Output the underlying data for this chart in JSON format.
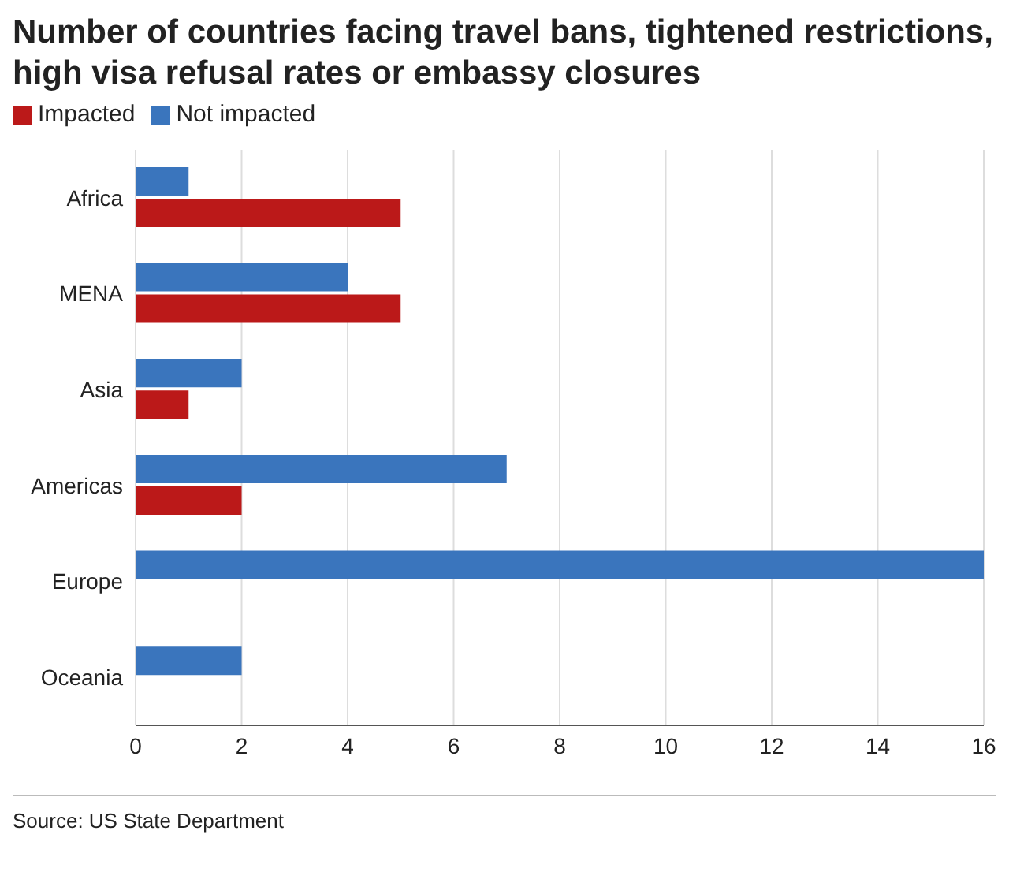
{
  "chart_data": {
    "type": "bar",
    "orientation": "horizontal",
    "title": "Number of countries facing travel bans, tightened restrictions, high visa refusal rates or embassy closures",
    "categories": [
      "Africa",
      "MENA",
      "Asia",
      "Americas",
      "Europe",
      "Oceania"
    ],
    "series": [
      {
        "name": "Not impacted",
        "color": "#3a75bd",
        "values": [
          1,
          4,
          2,
          7,
          16,
          2
        ]
      },
      {
        "name": "Impacted",
        "color": "#bb1919",
        "values": [
          5,
          5,
          1,
          2,
          0,
          0
        ]
      }
    ],
    "xlim": [
      0,
      16
    ],
    "xticks": [
      0,
      2,
      4,
      6,
      8,
      10,
      12,
      14,
      16
    ],
    "grid": "x",
    "legend": "top left",
    "annotations": [
      "Source: US State Department"
    ]
  }
}
